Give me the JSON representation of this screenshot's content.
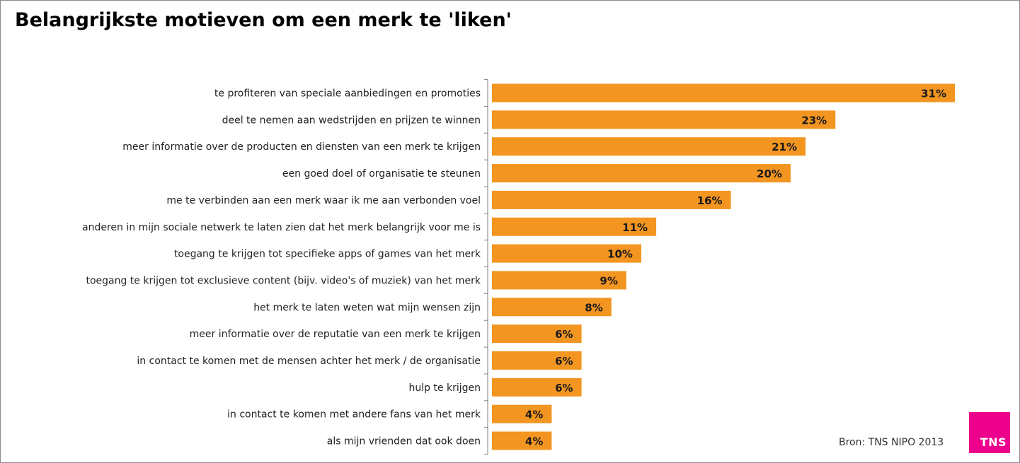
{
  "title": "Belangrijkste motieven om een merk te 'liken'",
  "source": "Bron: TNS NIPO 2013",
  "logo_text": "TNS",
  "colors": {
    "bar": "#f39521",
    "axis": "#7f7f7f",
    "logo": "#ec008c"
  },
  "chart_data": {
    "type": "bar",
    "orientation": "horizontal",
    "title": "Belangrijkste motieven om een merk te 'liken'",
    "xlabel": "",
    "ylabel": "",
    "xlim": [
      0,
      31
    ],
    "unit": "%",
    "categories": [
      "te profiteren van speciale aanbiedingen en promoties",
      "deel te nemen aan wedstrijden en prijzen te winnen",
      "meer informatie over de producten en diensten van een merk te krijgen",
      "een goed doel of organisatie te steunen",
      "me te verbinden aan een merk waar ik me aan verbonden voel",
      "anderen in mijn sociale netwerk te laten zien dat het merk belangrijk voor me is",
      "toegang te krijgen tot specifieke apps of games van het merk",
      "toegang te krijgen tot exclusieve content (bijv. video's of muziek) van het merk",
      "het merk te laten weten wat mijn wensen zijn",
      "meer informatie over de reputatie van een merk te krijgen",
      "in contact te komen met de mensen achter het merk / de organisatie",
      "hulp te krijgen",
      "in contact te komen met andere fans van het merk",
      "als mijn vrienden dat ook doen"
    ],
    "values": [
      31,
      23,
      21,
      20,
      16,
      11,
      10,
      9,
      8,
      6,
      6,
      6,
      4,
      4
    ],
    "labels": [
      "31%",
      "23%",
      "21%",
      "20%",
      "16%",
      "11%",
      "10%",
      "9%",
      "8%",
      "6%",
      "6%",
      "6%",
      "4%",
      "4%"
    ],
    "grid": false,
    "legend": "none"
  }
}
